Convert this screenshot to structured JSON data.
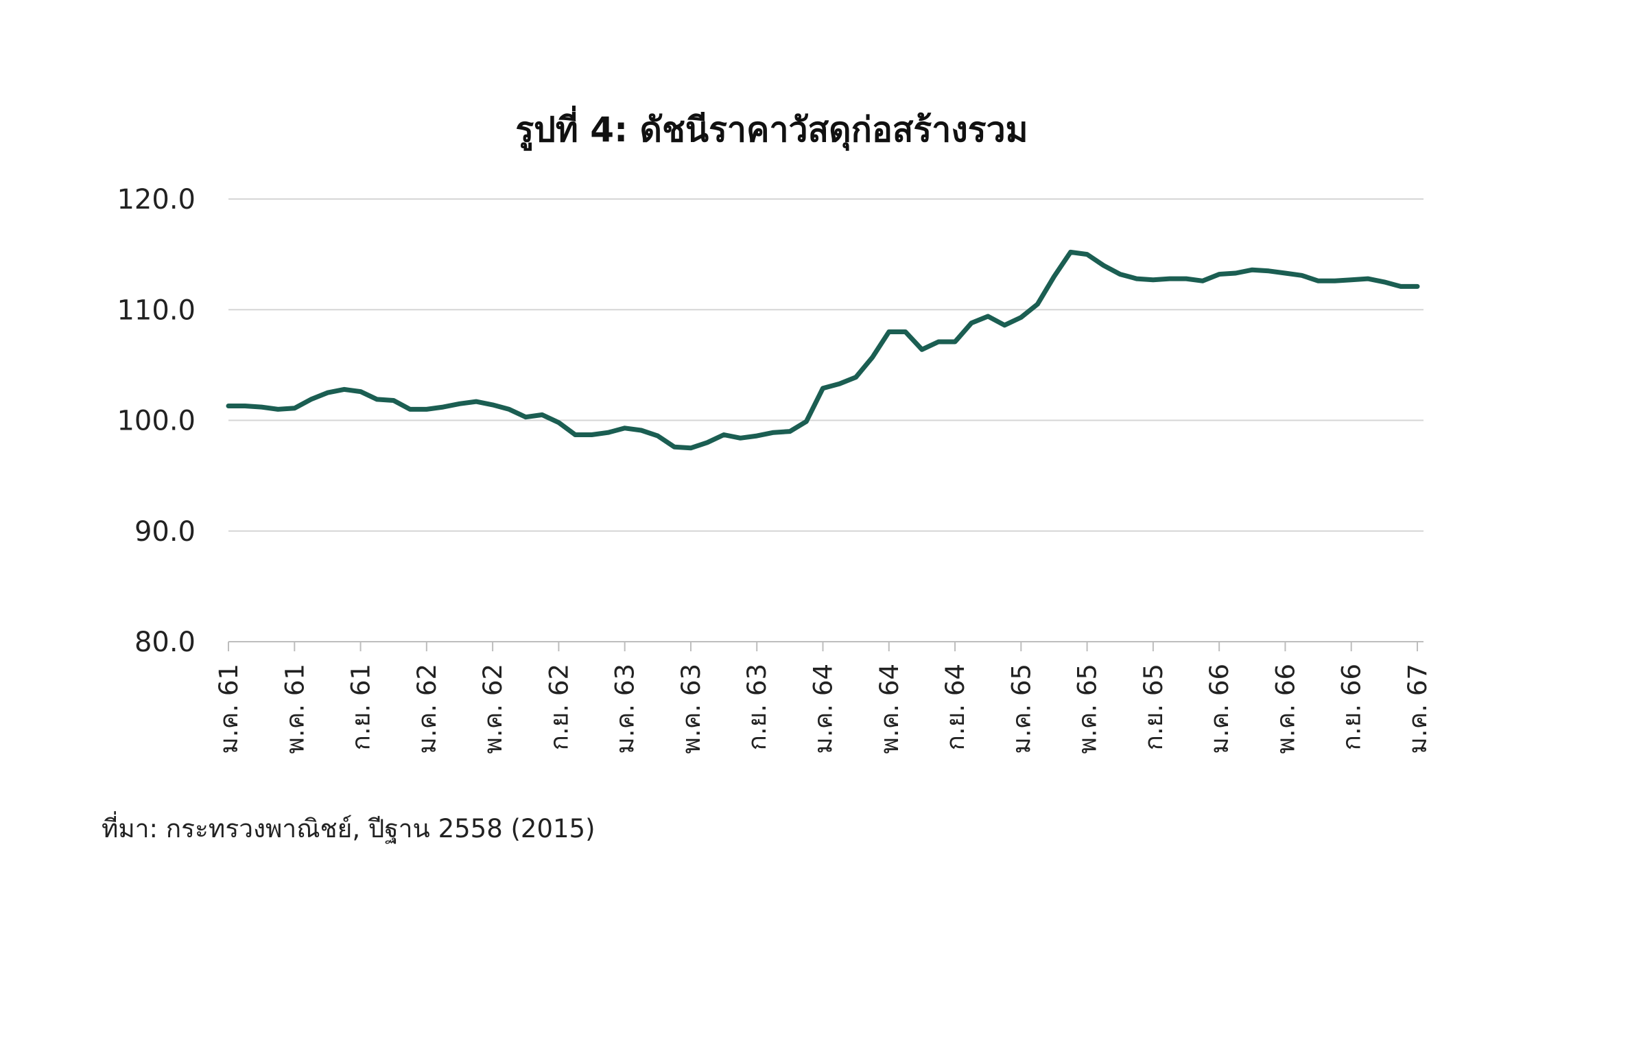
{
  "chart_data": {
    "type": "line",
    "title": "รูปที่ 4: ดัชนีราคาวัสดุก่อสร้างรวม",
    "source": "ที่มา: กระทรวงพาณิชย์, ปีฐาน 2558 (2015)",
    "ylim": [
      80,
      120
    ],
    "yticks": [
      "80.0",
      "90.0",
      "100.0",
      "110.0",
      "120.0"
    ],
    "grid": true,
    "xtick_labels": [
      "ม.ค. 61",
      "พ.ค. 61",
      "ก.ย. 61",
      "ม.ค. 62",
      "พ.ค. 62",
      "ก.ย. 62",
      "ม.ค. 63",
      "พ.ค. 63",
      "ก.ย. 63",
      "ม.ค. 64",
      "พ.ค. 64",
      "ก.ย. 64",
      "ม.ค. 65",
      "พ.ค. 65",
      "ก.ย. 65",
      "ม.ค. 66",
      "พ.ค. 66",
      "ก.ย. 66",
      "ม.ค. 67"
    ],
    "line_color": "#1b5e52",
    "series": [
      {
        "values": [
          101.3,
          101.3,
          101.2,
          101.0,
          101.1,
          101.9,
          102.5,
          102.8,
          102.6,
          101.9,
          101.8,
          101.0,
          101.0,
          101.2,
          101.5,
          101.7,
          101.4,
          101.0,
          100.3,
          100.5,
          99.8,
          98.7,
          98.7,
          98.9,
          99.3,
          99.1,
          98.6,
          97.6,
          97.5,
          98.0,
          98.7,
          98.4,
          98.6,
          98.9,
          99.0,
          99.9,
          102.9,
          103.3,
          103.9,
          105.7,
          108.0,
          108.0,
          106.4,
          107.1,
          107.1,
          108.8,
          109.4,
          108.6,
          109.3,
          110.5,
          113.0,
          115.2,
          115.0,
          114.0,
          113.2,
          112.8,
          112.7,
          112.8,
          112.8,
          112.6,
          113.2,
          113.3,
          113.6,
          113.5,
          113.3,
          113.1,
          112.6,
          112.6,
          112.7,
          112.8,
          112.5,
          112.1,
          112.1
        ]
      }
    ]
  }
}
